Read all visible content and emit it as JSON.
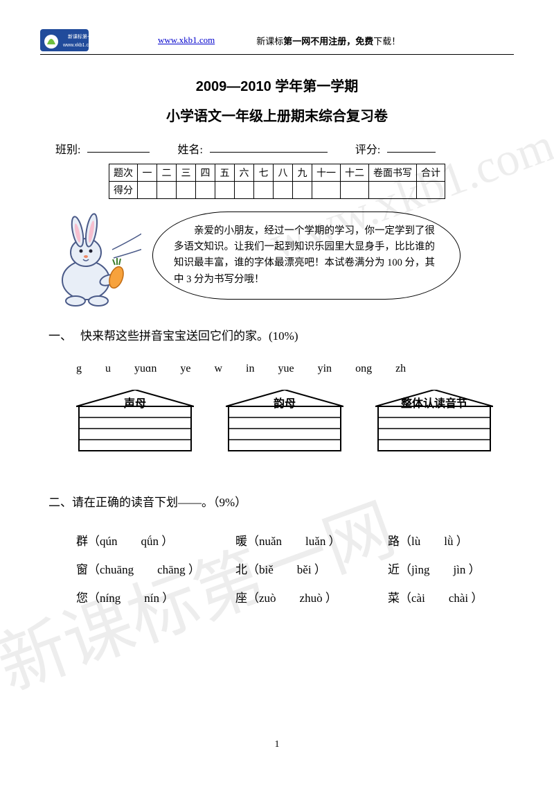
{
  "header": {
    "link": "www.xkb1.com",
    "text_plain1": "新课标",
    "text_bold": "第一网不用注册，免费",
    "text_plain2": "下载！"
  },
  "titles": {
    "line1": "2009—2010 学年第一学期",
    "line2": "小学语文一年级上册期末综合复习卷"
  },
  "info": {
    "class_label": "班别:",
    "name_label": "姓名:",
    "score_label": "评分:"
  },
  "score_table": {
    "row1": [
      "题次",
      "一",
      "二",
      "三",
      "四",
      "五",
      "六",
      "七",
      "八",
      "九",
      "十一",
      "十二",
      "卷面书写",
      "合计"
    ],
    "row2_label": "得分"
  },
  "bubble_text": "亲爱的小朋友，经过一个学期的学习，你一定学到了很多语文知识。让我们一起到知识乐园里大显身手，比比谁的知识最丰富，谁的字体最漂亮吧！本试卷满分为 100 分，其中 3 分为书写分哦！",
  "q1": {
    "num": "一、",
    "title": "快来帮这些拼音宝宝送回它们的家。(10%)",
    "pinyins": [
      "g",
      "u",
      "yuɑn",
      "ye",
      "w",
      "in",
      "yue",
      "yin",
      "ong",
      "zh"
    ],
    "houses": [
      "声母",
      "韵母",
      "整体认读音节"
    ]
  },
  "q2": {
    "num": "二、",
    "title": "请在正确的读音下划——。（9%）",
    "rows": [
      [
        {
          "ch": "群",
          "a": "qún",
          "b": "qǘn"
        },
        {
          "ch": "暖",
          "a": "nuǎn",
          "b": "luǎn"
        },
        {
          "ch": "路",
          "a": "lù",
          "b": "lǜ"
        }
      ],
      [
        {
          "ch": "窗",
          "a": "chuāng",
          "b": "chāng"
        },
        {
          "ch": "北",
          "a": "biě",
          "b": "běi"
        },
        {
          "ch": "近",
          "a": "jìng",
          "b": "jìn"
        }
      ],
      [
        {
          "ch": "您",
          "a": "níng",
          "b": "nín"
        },
        {
          "ch": "座",
          "a": "zuò",
          "b": "zhuò"
        },
        {
          "ch": "菜",
          "a": "cài",
          "b": "chài"
        }
      ]
    ]
  },
  "watermarks": {
    "w1": "www.xkb1.com",
    "w2": "新课标第一网"
  },
  "page_number": "1",
  "colors": {
    "link": "#0000cc",
    "logo_bg": "#214b9b",
    "logo_green": "#6fbf3f"
  }
}
